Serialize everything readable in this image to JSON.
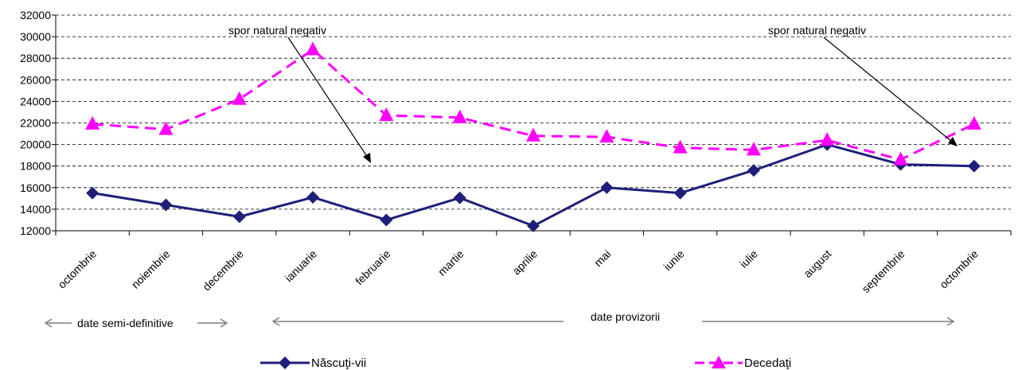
{
  "chart_data": {
    "type": "line",
    "categories": [
      "octombrie",
      "noiembrie",
      "decembrie",
      "ianuarie",
      "februarie",
      "martie",
      "aprilie",
      "mai",
      "iunie",
      "iulie",
      "august",
      "septembrie",
      "octombrie"
    ],
    "series": [
      {
        "name": "Născuţi-vii",
        "color": "#1f1f7a",
        "marker": "diamond",
        "dash": "solid",
        "values": [
          15500,
          14400,
          13300,
          15100,
          13000,
          15050,
          12450,
          16000,
          15500,
          17600,
          20000,
          18150,
          18000
        ]
      },
      {
        "name": "Decedaţi",
        "color": "#ff00ff",
        "marker": "triangle",
        "dash": "dashed",
        "values": [
          21900,
          21400,
          24200,
          28800,
          22700,
          22500,
          20800,
          20700,
          19700,
          19500,
          20400,
          18600,
          21900
        ]
      }
    ],
    "ylim": [
      12000,
      32000
    ],
    "yticks": [
      12000,
      14000,
      16000,
      18000,
      20000,
      22000,
      24000,
      26000,
      28000,
      30000,
      32000
    ],
    "grid": "horizontal dashed",
    "legend_position": "bottom",
    "annotations": [
      "spor natural negativ",
      "spor natural negativ"
    ],
    "period_labels": [
      "date semi-definitive",
      "date provizorii"
    ]
  }
}
